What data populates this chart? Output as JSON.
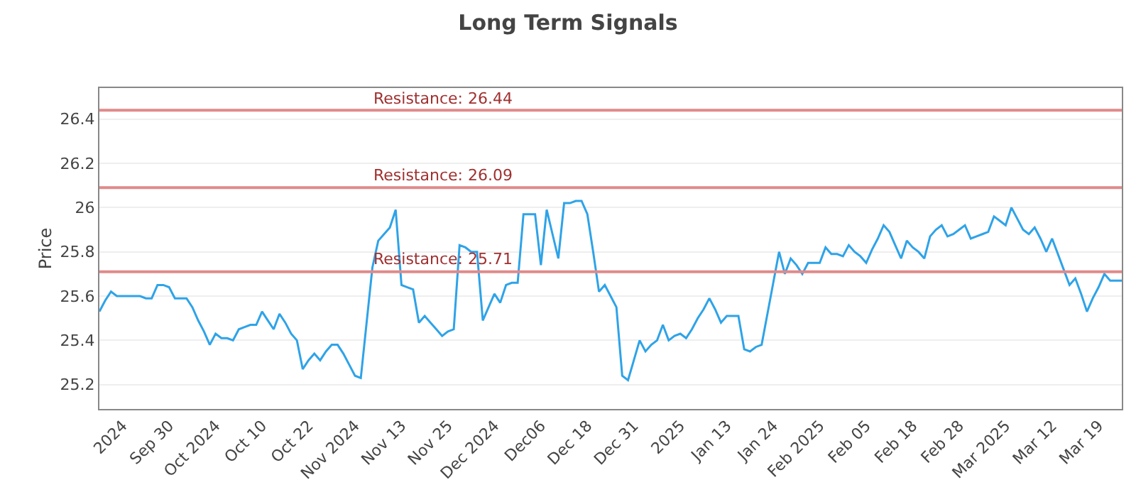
{
  "chart_data": {
    "type": "line",
    "title": "Long Term Signals",
    "ylabel": "Price",
    "categories": [
      null,
      null,
      null,
      null,
      "2024",
      null,
      null,
      null,
      null,
      null,
      null,
      null,
      "Sep 30",
      null,
      null,
      null,
      null,
      null,
      null,
      null,
      "Oct 2024",
      null,
      null,
      null,
      null,
      null,
      null,
      null,
      "Oct 10",
      null,
      null,
      null,
      null,
      null,
      null,
      null,
      "Oct 22",
      null,
      null,
      null,
      null,
      null,
      null,
      null,
      "Nov 2024",
      null,
      null,
      null,
      null,
      null,
      null,
      null,
      "Nov 13",
      null,
      null,
      null,
      null,
      null,
      null,
      null,
      "Nov 25",
      null,
      null,
      null,
      null,
      null,
      null,
      null,
      "Dec 2024",
      null,
      null,
      null,
      null,
      null,
      null,
      null,
      "Dec06",
      null,
      null,
      null,
      null,
      null,
      null,
      null,
      "Dec 18",
      null,
      null,
      null,
      null,
      null,
      null,
      null,
      "Dec 31",
      null,
      null,
      null,
      null,
      null,
      null,
      null,
      "2025",
      null,
      null,
      null,
      null,
      null,
      null,
      null,
      "Jan 13",
      null,
      null,
      null,
      null,
      null,
      null,
      null,
      "Jan 24",
      null,
      null,
      null,
      null,
      null,
      null,
      null,
      "Feb 2025",
      null,
      null,
      null,
      null,
      null,
      null,
      null,
      "Feb 05",
      null,
      null,
      null,
      null,
      null,
      null,
      null,
      "Feb 18",
      null,
      null,
      null,
      null,
      null,
      null,
      null,
      "Feb 28",
      null,
      null,
      null,
      null,
      null,
      null,
      null,
      "Mar 2025",
      null,
      null,
      null,
      null,
      null,
      null,
      null,
      "Mar 12",
      null,
      null,
      null,
      null,
      null,
      null,
      null,
      "Mar 19",
      null,
      null,
      null,
      null
    ],
    "ylim": [
      25.09,
      26.54
    ],
    "yticks": [
      25.2,
      25.4,
      25.6,
      25.8,
      26,
      26.2,
      26.4
    ],
    "grid": "y",
    "marker": "none",
    "line_style": "solid",
    "series": [
      {
        "color": "#2ea3e8",
        "values": [
          25.53,
          25.58,
          25.62,
          25.6,
          25.6,
          25.6,
          25.6,
          25.6,
          25.59,
          25.59,
          25.65,
          25.65,
          25.64,
          25.59,
          25.59,
          25.59,
          25.55,
          25.49,
          25.44,
          25.38,
          25.43,
          25.41,
          25.41,
          25.4,
          25.45,
          25.46,
          25.47,
          25.47,
          25.53,
          25.49,
          25.45,
          25.52,
          25.48,
          25.43,
          25.4,
          25.27,
          25.31,
          25.34,
          25.31,
          25.35,
          25.38,
          25.38,
          25.34,
          25.29,
          25.24,
          25.23,
          25.48,
          25.73,
          25.85,
          25.88,
          25.91,
          25.99,
          25.65,
          25.64,
          25.63,
          25.48,
          25.51,
          25.48,
          25.45,
          25.42,
          25.44,
          25.45,
          25.83,
          25.82,
          25.8,
          25.8,
          25.49,
          25.55,
          25.61,
          25.57,
          25.65,
          25.66,
          25.66,
          25.97,
          25.97,
          25.97,
          25.74,
          25.99,
          25.88,
          25.77,
          26.02,
          26.02,
          26.03,
          26.03,
          25.97,
          25.8,
          25.62,
          25.65,
          25.6,
          25.55,
          25.24,
          25.22,
          25.31,
          25.4,
          25.35,
          25.38,
          25.4,
          25.47,
          25.4,
          25.42,
          25.43,
          25.41,
          25.45,
          25.5,
          25.54,
          25.59,
          25.54,
          25.48,
          25.51,
          25.51,
          25.51,
          25.36,
          25.35,
          25.37,
          25.38,
          25.52,
          25.66,
          25.8,
          25.7,
          25.77,
          25.74,
          25.7,
          25.75,
          25.75,
          25.75,
          25.82,
          25.79,
          25.79,
          25.78,
          25.83,
          25.8,
          25.78,
          25.75,
          25.81,
          25.86,
          25.92,
          25.89,
          25.83,
          25.77,
          25.85,
          25.82,
          25.8,
          25.77,
          25.87,
          25.9,
          25.92,
          25.87,
          25.88,
          25.9,
          25.92,
          25.86,
          25.87,
          25.88,
          25.89,
          25.96,
          25.94,
          25.92,
          26,
          25.95,
          25.9,
          25.88,
          25.91,
          25.86,
          25.8,
          25.86,
          25.79,
          25.72,
          25.65,
          25.68,
          25.61,
          25.53,
          25.59,
          25.64,
          25.7,
          25.67,
          25.67,
          25.67
        ]
      }
    ],
    "ref_lines": [
      {
        "axis": "y",
        "value": 26.44,
        "label": "Resistance: 26.44",
        "color": "#e08a8a"
      },
      {
        "axis": "y",
        "value": 26.09,
        "label": "Resistance: 26.09",
        "color": "#e08a8a"
      },
      {
        "axis": "y",
        "value": 25.71,
        "label": "Resistance: 25.71",
        "color": "#e08a8a"
      }
    ]
  }
}
